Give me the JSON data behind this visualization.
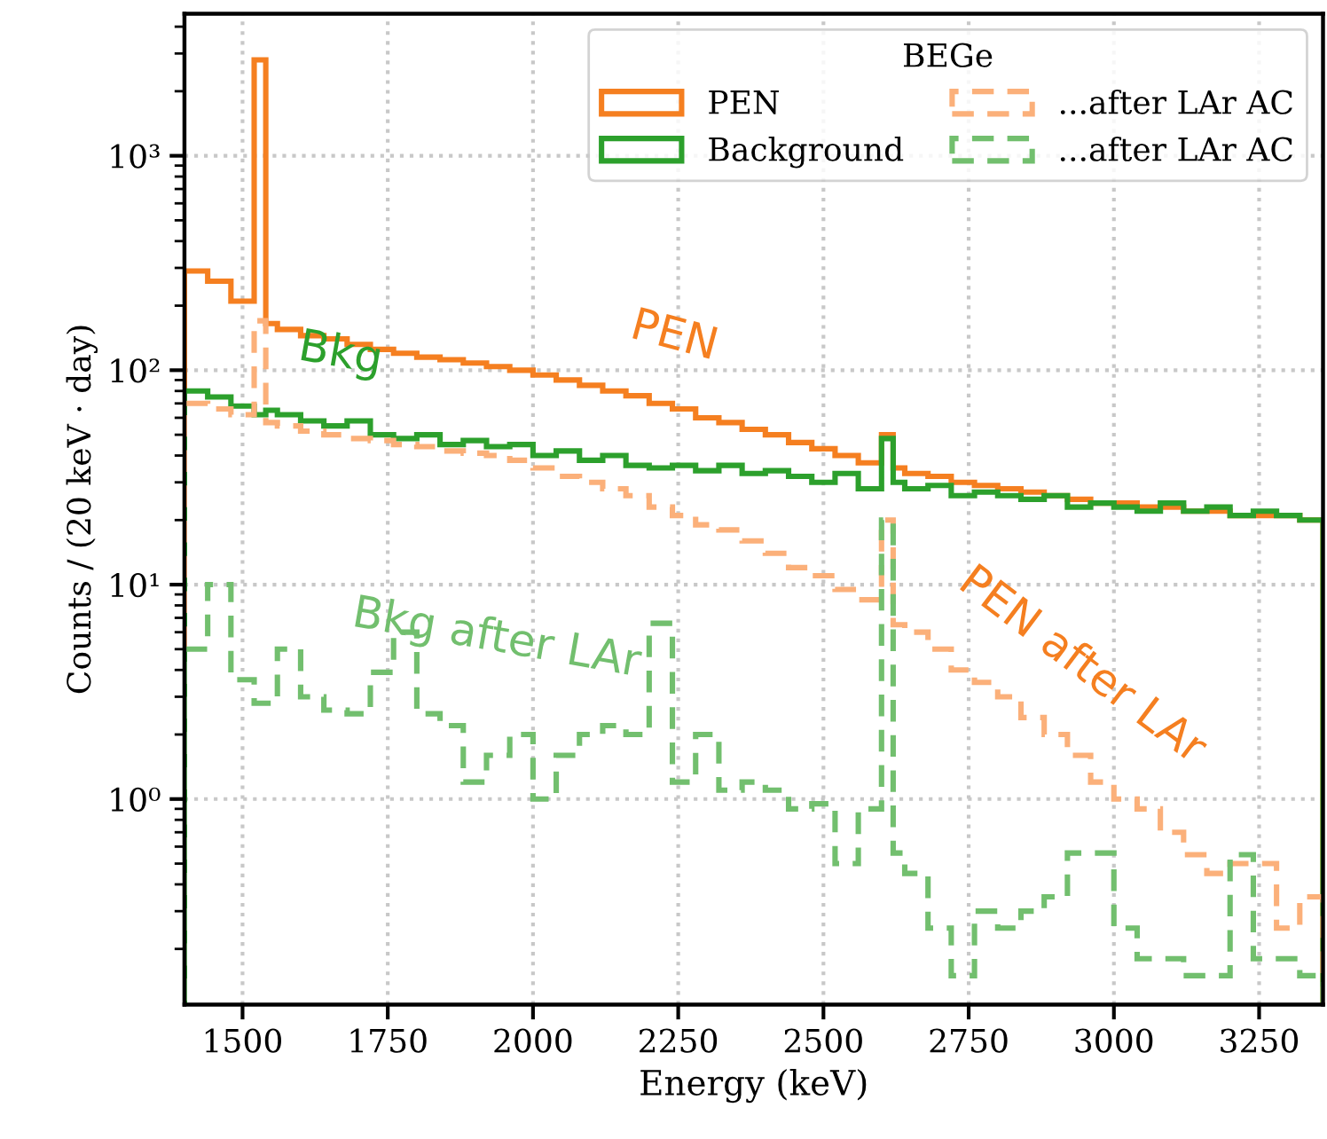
{
  "chart_data": {
    "type": "histogram",
    "xlabel": "Energy (keV)",
    "ylabel": "Counts / (20 keV · day)",
    "legend_title": "BEGe",
    "legend": "top right",
    "grid": true,
    "log": "y",
    "xlim": [
      1400,
      3360
    ],
    "xticks": [
      1500,
      1750,
      2000,
      2250,
      2500,
      2750,
      3000,
      3250
    ],
    "ylim": [
      0.11,
      4600
    ],
    "yticks": [
      {
        "value": 1,
        "label": "10⁰"
      },
      {
        "value": 10,
        "label": "10¹"
      },
      {
        "value": 100,
        "label": "10²"
      },
      {
        "value": 1000,
        "label": "10³"
      }
    ],
    "bins": [
      1400,
      1440,
      1480,
      1520,
      1540,
      1560,
      1600,
      1640,
      1680,
      1720,
      1760,
      1800,
      1840,
      1880,
      1920,
      1960,
      2000,
      2040,
      2080,
      2120,
      2160,
      2200,
      2240,
      2280,
      2320,
      2360,
      2400,
      2440,
      2480,
      2520,
      2560,
      2600,
      2620,
      2640,
      2680,
      2720,
      2760,
      2800,
      2840,
      2880,
      2920,
      2960,
      3000,
      3040,
      3080,
      3120,
      3160,
      3200,
      3240,
      3280,
      3320,
      3360
    ],
    "series": [
      {
        "name": "PEN",
        "color": "#f57f20",
        "line_style": "solid",
        "values": [
          290,
          260,
          210,
          2800,
          165,
          155,
          145,
          140,
          132,
          125,
          120,
          115,
          112,
          108,
          104,
          100,
          95,
          90,
          85,
          80,
          76,
          70,
          66,
          60,
          57,
          53,
          50,
          46,
          43,
          40,
          37,
          50,
          35,
          33,
          32,
          30,
          29,
          28,
          27,
          26,
          25,
          24,
          24,
          23,
          23,
          22,
          22,
          21,
          21,
          21,
          20
        ]
      },
      {
        "name": "Background",
        "color": "#2ca02c",
        "line_style": "solid",
        "values": [
          80,
          75,
          68,
          62,
          65,
          62,
          58,
          55,
          58,
          50,
          48,
          50,
          45,
          47,
          44,
          45,
          40,
          42,
          38,
          40,
          36,
          35,
          36,
          34,
          36,
          33,
          34,
          32,
          30,
          33,
          28,
          48,
          30,
          28,
          29,
          26,
          27,
          26,
          25,
          26,
          23,
          24,
          23,
          22,
          24,
          22,
          23,
          21,
          22,
          21,
          20
        ]
      },
      {
        "name": "...after LAr AC",
        "color": "#fbb07a",
        "line_style": "dashed",
        "values": [
          70,
          66,
          62,
          170,
          57,
          55,
          52,
          50,
          48,
          47,
          45,
          44,
          42,
          41,
          40,
          38,
          35,
          32,
          30,
          28,
          26,
          23,
          21,
          19,
          18,
          16,
          14,
          12,
          11,
          9.5,
          8.5,
          20,
          6.5,
          6,
          5,
          4,
          3.5,
          3,
          2.4,
          2,
          1.6,
          1.2,
          1,
          0.9,
          0.7,
          0.55,
          0.45,
          0.5,
          0.5,
          0.25,
          0.35
        ]
      },
      {
        "name": "...after LAr AC",
        "color": "#72bf6e",
        "line_style": "dashed",
        "values": [
          5,
          10,
          3.6,
          2.8,
          2.8,
          5,
          3,
          2.6,
          2.5,
          3.9,
          6,
          2.5,
          2.2,
          1.2,
          1.6,
          2.0,
          1.0,
          1.6,
          2.0,
          2.2,
          2.0,
          6.6,
          1.2,
          2.0,
          1.1,
          1.2,
          1.1,
          0.9,
          0.95,
          0.5,
          0.9,
          20,
          0.56,
          0.45,
          0.25,
          0.15,
          0.3,
          0.25,
          0.3,
          0.35,
          0.56,
          0.56,
          0.25,
          0.18,
          0.18,
          0.15,
          0.15,
          0.55,
          0.18,
          0.18,
          0.15
        ]
      }
    ],
    "annotations": [
      "PEN",
      "Bkg",
      "Bkg after LAr",
      "PEN after LAr"
    ]
  }
}
